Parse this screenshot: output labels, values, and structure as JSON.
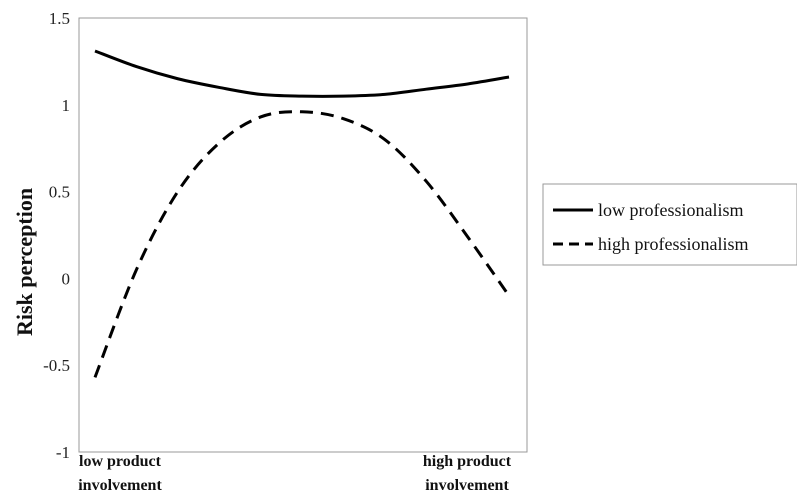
{
  "chart_data": {
    "type": "line",
    "ylabel": "Risk perception",
    "ylim": [
      -1,
      1.5
    ],
    "yticks": [
      "1.5",
      "1",
      "0.5",
      "0",
      "-0.5",
      "-1"
    ],
    "categories": [
      [
        "low product",
        "involvement"
      ],
      [
        "high product",
        "involvement"
      ]
    ],
    "series": [
      {
        "name": "low professionalism",
        "style": "solid",
        "x": [
          0,
          0.1,
          0.2,
          0.3,
          0.4,
          0.5,
          0.6,
          0.7,
          0.8,
          0.9,
          1.0
        ],
        "values": [
          1.31,
          1.22,
          1.15,
          1.1,
          1.06,
          1.05,
          1.05,
          1.06,
          1.09,
          1.12,
          1.16
        ]
      },
      {
        "name": "high professionalism",
        "style": "dashed",
        "x": [
          0,
          0.1,
          0.2,
          0.3,
          0.4,
          0.5,
          0.6,
          0.7,
          0.8,
          0.9,
          1.0
        ],
        "values": [
          -0.57,
          0.05,
          0.5,
          0.78,
          0.93,
          0.96,
          0.92,
          0.8,
          0.56,
          0.24,
          -0.1
        ]
      }
    ],
    "grid": false,
    "legend_position": "right"
  },
  "colors": {
    "line": "#000000",
    "axis": "#999999",
    "legend_border": "#999999"
  }
}
